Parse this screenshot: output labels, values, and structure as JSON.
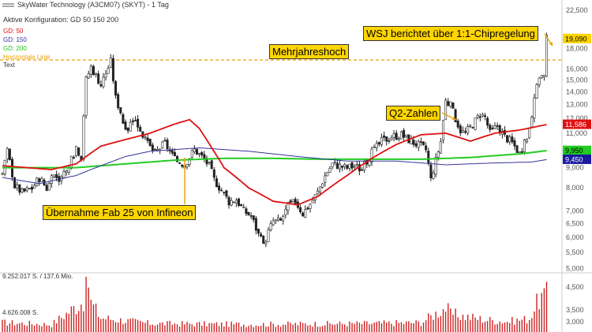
{
  "header": {
    "title": "SkyWater Technology (A3CM07) (SKYT) - 1 Tag",
    "config": "Aktive Konfiguration: GD 50 150 200",
    "legend": [
      {
        "label": "GD: 50",
        "color": "#dd1111"
      },
      {
        "label": "GD: 150",
        "color": "#333399"
      },
      {
        "label": "GD: 200",
        "color": "#22cc22"
      },
      {
        "label": "Horizontale Linie",
        "color": "#e8a000"
      },
      {
        "label": "Text",
        "color": "#333333"
      }
    ]
  },
  "annotations": {
    "high": "Mehrjahreshoch",
    "wsj": "WSJ berichtet über 1:1-Chipregelung",
    "q2": "Q2-Zahlen",
    "fab": "Übernahme Fab 25 von Infineon"
  },
  "volume_labels": {
    "top": "9.252.017 S. / 137,6 Mio.",
    "mid": "4.626.008 S."
  },
  "chart_data": {
    "type": "candlestick",
    "price_axis": {
      "scale": "log",
      "ticks": [
        "22,500",
        "19,090",
        "18,000",
        "16,000",
        "15,000",
        "14,000",
        "13,000",
        "12,000",
        "11,586",
        "11,000",
        "10,000",
        "9,950",
        "9,450",
        "9,000",
        "8,000",
        "7,000",
        "6,500",
        "6,000",
        "5,500",
        "5,000"
      ],
      "badges": [
        {
          "label": "19,090",
          "value": 19.09,
          "color": "#ffd500",
          "text": "#000000"
        },
        {
          "label": "11,586",
          "value": 11.586,
          "color": "#dd1111",
          "text": "#ffffff"
        },
        {
          "label": "9,950",
          "value": 9.95,
          "color": "#22cc22",
          "text": "#000000"
        },
        {
          "label": "9,450",
          "value": 9.45,
          "color": "#1a1aa0",
          "text": "#ffffff"
        }
      ],
      "range": [
        4.9,
        22.5
      ]
    },
    "volume_axis": {
      "ticks": [
        "4,500",
        "3,500",
        "3,000"
      ]
    },
    "horizontal_line": 16.85,
    "price_anchors": [
      [
        0,
        8.7
      ],
      [
        2,
        9.9
      ],
      [
        5,
        8.1
      ],
      [
        8,
        7.8
      ],
      [
        12,
        8.0
      ],
      [
        15,
        8.5
      ],
      [
        18,
        8.0
      ],
      [
        21,
        8.6
      ],
      [
        24,
        8.4
      ],
      [
        27,
        9.0
      ],
      [
        30,
        10.2
      ],
      [
        32,
        9.6
      ],
      [
        34,
        15.0
      ],
      [
        36,
        16.2
      ],
      [
        38,
        15.4
      ],
      [
        40,
        14.6
      ],
      [
        42,
        15.6
      ],
      [
        44,
        16.7
      ],
      [
        46,
        13.5
      ],
      [
        48,
        12.5
      ],
      [
        50,
        11.0
      ],
      [
        53,
        12.0
      ],
      [
        56,
        11.3
      ],
      [
        58,
        10.5
      ],
      [
        62,
        9.8
      ],
      [
        66,
        10.4
      ],
      [
        70,
        9.4
      ],
      [
        74,
        9.2
      ],
      [
        78,
        10.0
      ],
      [
        81,
        9.6
      ],
      [
        84,
        9.1
      ],
      [
        86,
        8.4
      ],
      [
        89,
        7.9
      ],
      [
        92,
        7.4
      ],
      [
        95,
        7.5
      ],
      [
        98,
        7.0
      ],
      [
        101,
        6.8
      ],
      [
        104,
        6.1
      ],
      [
        106,
        5.7
      ],
      [
        108,
        6.2
      ],
      [
        110,
        6.6
      ],
      [
        113,
        6.6
      ],
      [
        116,
        7.2
      ],
      [
        119,
        7.4
      ],
      [
        122,
        6.9
      ],
      [
        125,
        7.3
      ],
      [
        128,
        7.8
      ],
      [
        131,
        8.6
      ],
      [
        134,
        9.2
      ],
      [
        137,
        9.1
      ],
      [
        140,
        9.0
      ],
      [
        143,
        9.1
      ],
      [
        146,
        8.9
      ],
      [
        150,
        9.8
      ],
      [
        154,
        10.5
      ],
      [
        158,
        10.8
      ],
      [
        162,
        10.9
      ],
      [
        166,
        10.5
      ],
      [
        170,
        10.2
      ],
      [
        172,
        10.0
      ],
      [
        174,
        8.4
      ],
      [
        176,
        9.4
      ],
      [
        178,
        10.5
      ],
      [
        180,
        13.3
      ],
      [
        182,
        12.9
      ],
      [
        184,
        12.0
      ],
      [
        186,
        11.2
      ],
      [
        188,
        11.0
      ],
      [
        191,
        11.6
      ],
      [
        194,
        12.3
      ],
      [
        196,
        12.1
      ],
      [
        198,
        11.0
      ],
      [
        201,
        11.5
      ],
      [
        204,
        10.8
      ],
      [
        207,
        10.4
      ],
      [
        210,
        9.8
      ],
      [
        213,
        10.6
      ],
      [
        216,
        13.2
      ],
      [
        218,
        15.4
      ],
      [
        220,
        15.3
      ],
      [
        221,
        19.09
      ]
    ],
    "volume_anchors": [
      [
        0,
        1.0
      ],
      [
        20,
        0.8
      ],
      [
        33,
        3.3
      ],
      [
        35,
        5.2
      ],
      [
        36,
        3.1
      ],
      [
        40,
        1.5
      ],
      [
        60,
        0.9
      ],
      [
        100,
        0.8
      ],
      [
        150,
        0.9
      ],
      [
        170,
        1.0
      ],
      [
        180,
        2.6
      ],
      [
        182,
        1.9
      ],
      [
        196,
        1.3
      ],
      [
        205,
        1.1
      ],
      [
        214,
        1.4
      ],
      [
        218,
        3.5
      ],
      [
        221,
        3.9
      ]
    ],
    "gd50": [
      [
        0,
        9.1
      ],
      [
        20,
        8.9
      ],
      [
        30,
        9.2
      ],
      [
        40,
        10.2
      ],
      [
        50,
        10.6
      ],
      [
        60,
        11.0
      ],
      [
        70,
        11.6
      ],
      [
        76,
        11.9
      ],
      [
        80,
        11.3
      ],
      [
        85,
        10.1
      ],
      [
        90,
        9.0
      ],
      [
        100,
        8.0
      ],
      [
        110,
        7.4
      ],
      [
        120,
        7.25
      ],
      [
        128,
        7.6
      ],
      [
        140,
        8.6
      ],
      [
        150,
        9.5
      ],
      [
        160,
        10.3
      ],
      [
        170,
        10.9
      ],
      [
        180,
        11.0
      ],
      [
        190,
        10.5
      ],
      [
        200,
        11.0
      ],
      [
        210,
        11.2
      ],
      [
        222,
        11.6
      ]
    ],
    "gd150": [
      [
        0,
        8.5
      ],
      [
        15,
        8.2
      ],
      [
        30,
        8.6
      ],
      [
        40,
        9.1
      ],
      [
        50,
        9.6
      ],
      [
        60,
        9.9
      ],
      [
        80,
        10.1
      ],
      [
        100,
        9.9
      ],
      [
        120,
        9.6
      ],
      [
        140,
        9.35
      ],
      [
        160,
        9.35
      ],
      [
        180,
        9.15
      ],
      [
        200,
        9.25
      ],
      [
        215,
        9.3
      ],
      [
        222,
        9.45
      ]
    ],
    "gd200": [
      [
        0,
        9.0
      ],
      [
        30,
        9.0
      ],
      [
        50,
        9.2
      ],
      [
        70,
        9.4
      ],
      [
        90,
        9.5
      ],
      [
        110,
        9.5
      ],
      [
        130,
        9.45
      ],
      [
        150,
        9.45
      ],
      [
        170,
        9.45
      ],
      [
        190,
        9.55
      ],
      [
        210,
        9.75
      ],
      [
        222,
        9.95
      ]
    ]
  }
}
